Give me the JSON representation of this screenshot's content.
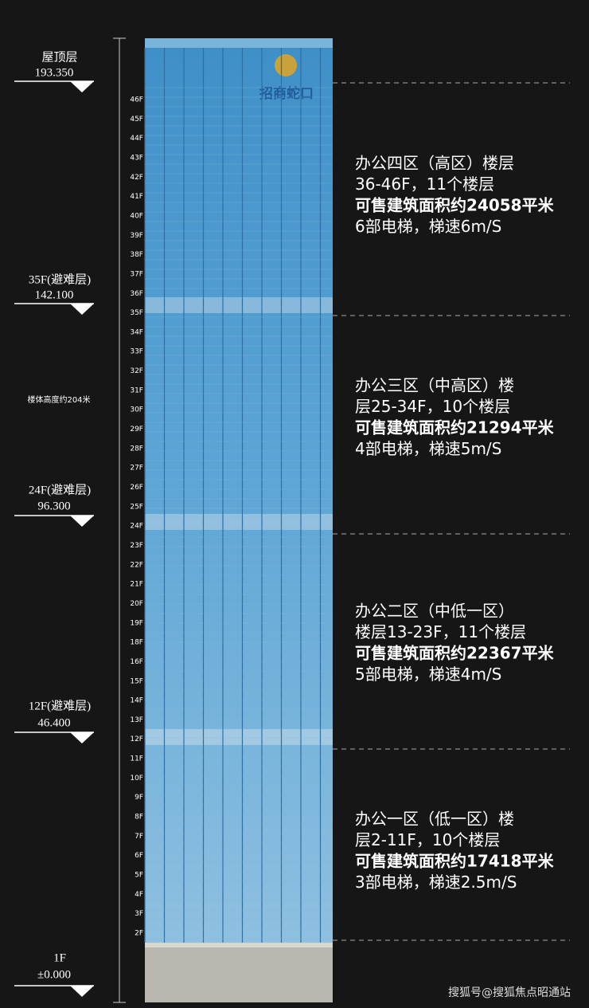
{
  "elevations": [
    {
      "label": "屋顶层",
      "value": "193.350"
    },
    {
      "label": "35F(避难层)",
      "value": "142.100"
    },
    {
      "label": "24F(避难层)",
      "value": "96.300"
    },
    {
      "label": "12F(避难层)",
      "value": "46.400"
    },
    {
      "label": "1F",
      "value": "±0.000"
    }
  ],
  "height_note": "楼体高度约204米",
  "logo": "招商蛇口",
  "floors": [
    "46F",
    "45F",
    "44F",
    "43F",
    "42F",
    "41F",
    "40F",
    "39F",
    "38F",
    "37F",
    "36F",
    "35F",
    "34F",
    "33F",
    "32F",
    "31F",
    "30F",
    "29F",
    "28F",
    "27F",
    "26F",
    "25F",
    "24F",
    "23F",
    "22F",
    "21F",
    "20F",
    "19F",
    "18F",
    "16F",
    "15F",
    "14F",
    "13F",
    "12F",
    "11F",
    "10F",
    "9F",
    "8F",
    "7F",
    "6F",
    "5F",
    "4F",
    "3F",
    "2F"
  ],
  "zones": [
    {
      "lines": [
        "办公四区（高区）楼层",
        "36-46F，11个楼层",
        "可售建筑面积约24058平米",
        "6部电梯，梯速6m/S"
      ]
    },
    {
      "lines": [
        "办公三区（中高区）楼",
        "层25-34F，10个楼层",
        "可售建筑面积约21294平米",
        "4部电梯，梯速5m/S"
      ]
    },
    {
      "lines": [
        "办公二区（中低一区）",
        "楼层13-23F，11个楼层",
        "可售建筑面积约22367平米",
        "5部电梯，梯速4m/S"
      ]
    },
    {
      "lines": [
        "办公一区（低一区）楼",
        "层2-11F，10个楼层",
        "可售建筑面积约17418平米",
        "3部电梯，梯速2.5m/S"
      ]
    }
  ],
  "watermark": "搜狐号@搜狐焦点昭通站"
}
